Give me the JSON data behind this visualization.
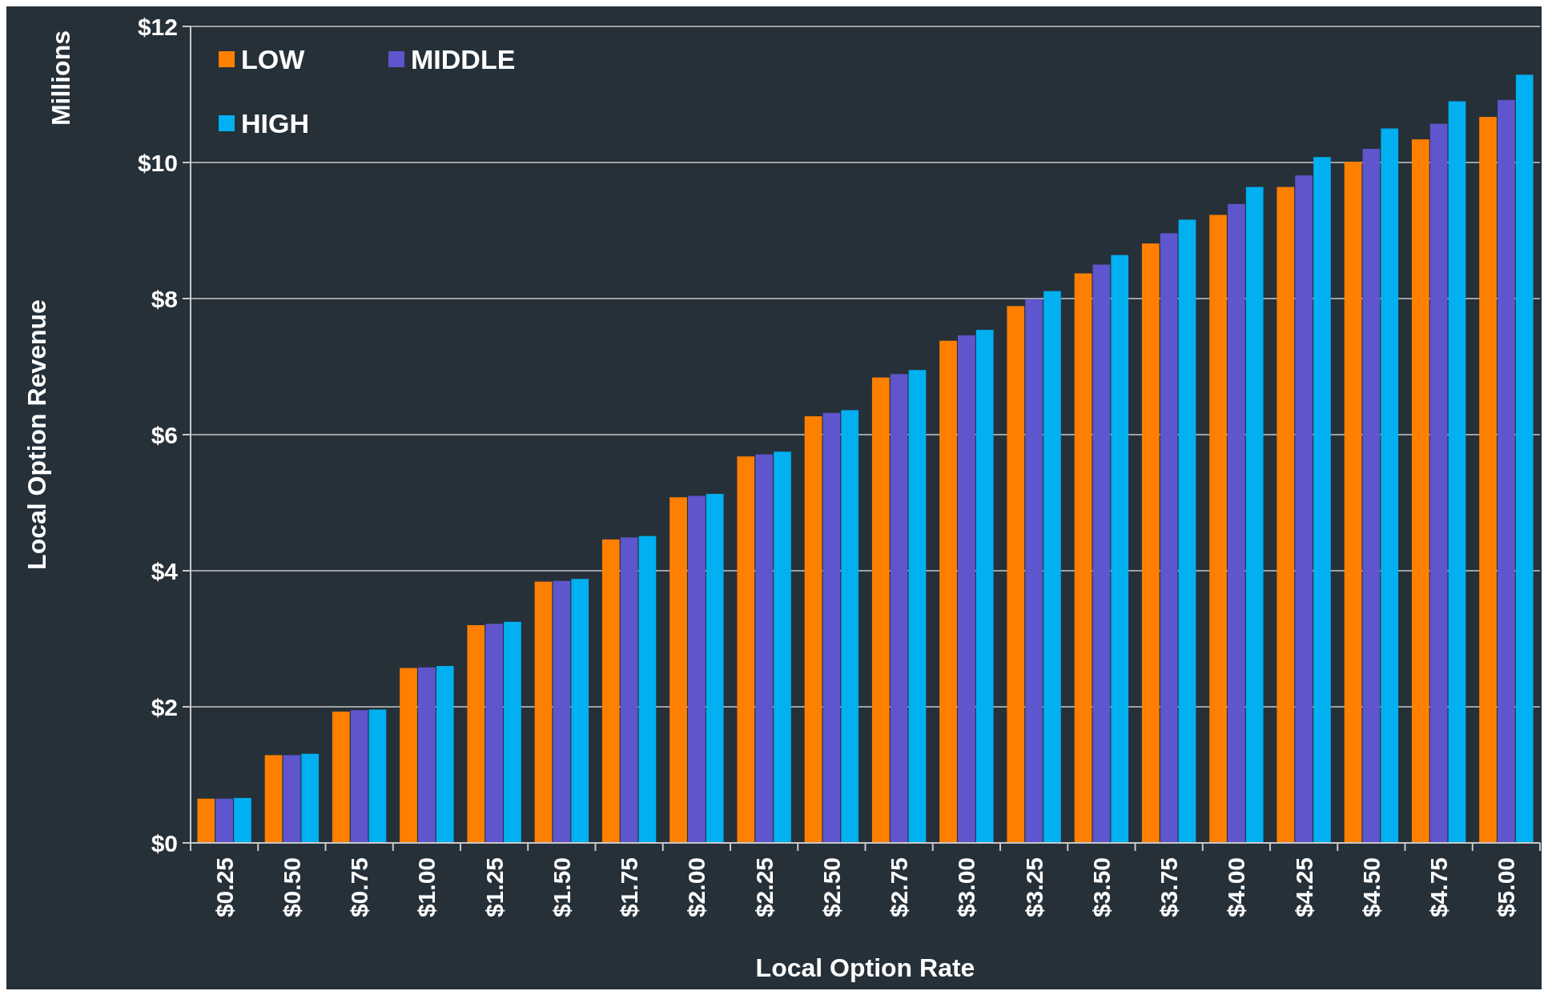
{
  "chart_data": {
    "type": "bar",
    "xlabel": "Local Option Rate",
    "ylabel": "Local Option Revenue",
    "annotations": [
      "Millions"
    ],
    "categories": [
      "$0.25",
      "$0.50",
      "$0.75",
      "$1.00",
      "$1.25",
      "$1.50",
      "$1.75",
      "$2.00",
      "$2.25",
      "$2.50",
      "$2.75",
      "$3.00",
      "$3.25",
      "$3.50",
      "$3.75",
      "$4.00",
      "$4.25",
      "$4.50",
      "$4.75",
      "$5.00"
    ],
    "series": [
      {
        "name": "LOW",
        "color": "#ff8000",
        "values": [
          0.65,
          1.29,
          1.93,
          2.57,
          3.2,
          3.84,
          4.46,
          5.08,
          5.68,
          6.27,
          6.84,
          7.38,
          7.89,
          8.37,
          8.81,
          9.23,
          9.64,
          10.01,
          10.34,
          10.67
        ]
      },
      {
        "name": "MIDDLE",
        "color": "#5f55cc",
        "values": [
          0.65,
          1.29,
          1.95,
          2.58,
          3.22,
          3.85,
          4.49,
          5.1,
          5.71,
          6.32,
          6.89,
          7.46,
          7.99,
          8.5,
          8.96,
          9.39,
          9.81,
          10.2,
          10.57,
          10.92
        ]
      },
      {
        "name": "HIGH",
        "color": "#00b0f0",
        "values": [
          0.66,
          1.31,
          1.96,
          2.6,
          3.25,
          3.88,
          4.51,
          5.13,
          5.75,
          6.36,
          6.95,
          7.54,
          8.11,
          8.64,
          9.16,
          9.64,
          10.08,
          10.5,
          10.9,
          11.29
        ]
      }
    ],
    "ylim": [
      0,
      12
    ],
    "yticks": [
      {
        "value": 0,
        "label": "$0"
      },
      {
        "value": 2,
        "label": "$2"
      },
      {
        "value": 4,
        "label": "$4"
      },
      {
        "value": 6,
        "label": "$6"
      },
      {
        "value": 8,
        "label": "$8"
      },
      {
        "value": 10,
        "label": "$10"
      },
      {
        "value": 12,
        "label": "$12"
      }
    ],
    "grid": "y",
    "legend": "top left"
  }
}
